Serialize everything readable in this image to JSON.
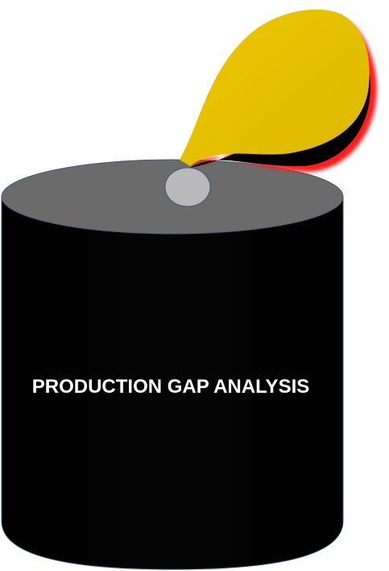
{
  "diagram": {
    "barrel_label": "PRODUCTION GAP ANALYSIS",
    "colors": {
      "background": "#ffffff",
      "barrel_body": "#000000",
      "barrel_top": "#6b6b6b",
      "barrel_outline": "#3a5a7a",
      "spout": "#b9b9bb",
      "drop_fill": "#e6c200",
      "drop_shadow": "#ff1a1a",
      "label_text": "#ffffff"
    },
    "icons": {
      "barrel": "oil-barrel-icon",
      "drop": "oil-drop-icon"
    }
  }
}
